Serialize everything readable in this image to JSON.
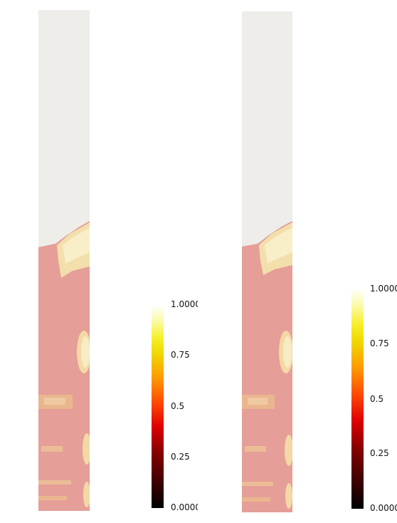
{
  "colors": {
    "empty_region": "#eeedea",
    "filled_region": "#e59e98",
    "highlight": "#f6e7ad",
    "colormap": [
      "#000000",
      "#8a0000",
      "#e00000",
      "#ff9a00",
      "#f0d800",
      "#ffffff"
    ]
  },
  "left_legend": {
    "ticks": [
      "1.0000",
      "0.75",
      "0.5",
      "0.25",
      "0.0000"
    ]
  },
  "right_legend": {
    "ticks": [
      "1.0000",
      "0.75",
      "0.5",
      "0.25",
      "0.0000"
    ]
  }
}
